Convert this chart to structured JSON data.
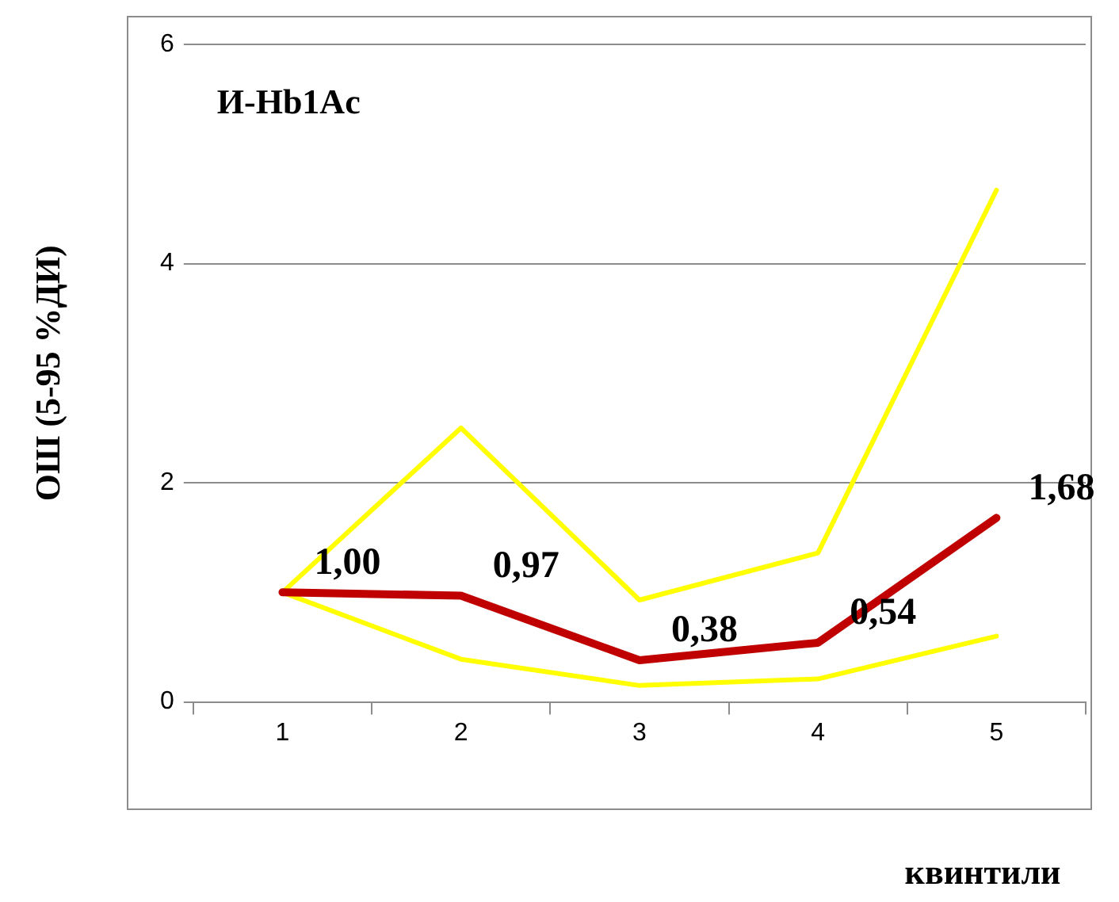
{
  "chart_data": {
    "type": "line",
    "title": "И-Hb1Ac",
    "xlabel": "квинтили",
    "ylabel": "ОШ (5-95 %ДИ)",
    "categories": [
      "1",
      "2",
      "3",
      "4",
      "5"
    ],
    "series": [
      {
        "color": "#ffff00",
        "values": [
          1.0,
          2.5,
          0.93,
          1.36,
          4.67
        ]
      },
      {
        "color": "#ffff00",
        "values": [
          1.0,
          0.39,
          0.15,
          0.21,
          0.6
        ]
      },
      {
        "color": "#c00000",
        "values": [
          1.0,
          0.97,
          0.38,
          0.54,
          1.68
        ],
        "value_labels": [
          "1,00",
          "0,97",
          "0,38",
          "0,54",
          "1,68"
        ]
      }
    ],
    "ylim": [
      0,
      6
    ],
    "yticks": [
      0,
      2,
      4,
      6
    ],
    "grid": "y",
    "legend": false,
    "marker": "none",
    "line_style": "solid"
  }
}
